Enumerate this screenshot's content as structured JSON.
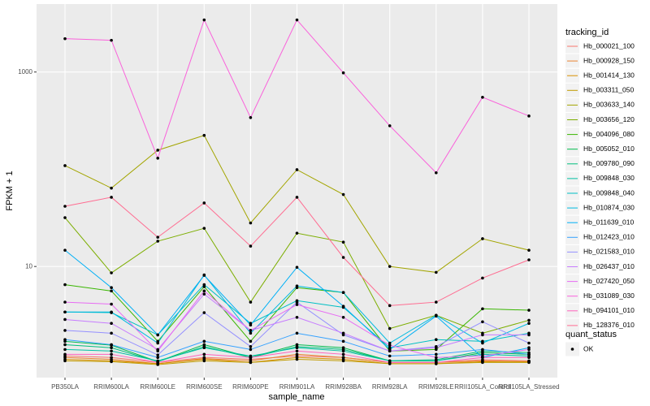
{
  "chart_data": {
    "type": "line",
    "x_label": "sample_name",
    "y_label": "FPKM + 1",
    "log_y": true,
    "grid": true,
    "legend_position": "right",
    "legend_title": "tracking_id",
    "status_legend_title": "quant_status",
    "status_values": [
      "OK"
    ],
    "point_color": "#000000",
    "ylim": [
      0.72,
      5000
    ],
    "yticks": [
      10,
      1000
    ],
    "categories": [
      "PB350LA",
      "RRIM600LA",
      "RRIM600LE",
      "RRIM600SE",
      "RRIM600PE",
      "RRIM901LA",
      "RRIM928BA",
      "RRIM928LA",
      "RRIM928LE",
      "RRII105LA_Control",
      "RRII105LA_Stressed"
    ],
    "series": [
      {
        "name": "Hb_000021_100",
        "color": "#F8766D",
        "values": [
          1.2,
          1.16,
          1.03,
          1.16,
          1.11,
          1.2,
          1.16,
          1.03,
          1.03,
          1.1,
          1.07
        ]
      },
      {
        "name": "Hb_000928_150",
        "color": "#EA8331",
        "values": [
          1.16,
          1.11,
          1.0,
          1.13,
          1.07,
          1.25,
          1.16,
          1.03,
          1.03,
          1.07,
          1.05
        ]
      },
      {
        "name": "Hb_001414_130",
        "color": "#D89000",
        "values": [
          1.11,
          1.07,
          1.0,
          1.11,
          1.03,
          1.16,
          1.11,
          1.0,
          1.0,
          1.05,
          1.05
        ]
      },
      {
        "name": "Hb_003311_050",
        "color": "#C09B00",
        "values": [
          1.07,
          1.05,
          0.98,
          1.07,
          1.03,
          1.11,
          1.07,
          1.0,
          1.0,
          1.03,
          1.03
        ]
      },
      {
        "name": "Hb_003633_140",
        "color": "#A3A500",
        "values": [
          109,
          64,
          157,
          223,
          28,
          99,
          55,
          10,
          8.7,
          19.3,
          14.7
        ]
      },
      {
        "name": "Hb_003656_120",
        "color": "#7CAE00",
        "values": [
          31.8,
          8.6,
          18.2,
          24.7,
          4.3,
          22,
          17.8,
          2.3,
          3.15,
          2.06,
          2.8
        ]
      },
      {
        "name": "Hb_004096_080",
        "color": "#39B600",
        "values": [
          6.5,
          5.6,
          1.7,
          6.2,
          1.7,
          6.06,
          5.4,
          1.35,
          1.4,
          3.67,
          3.55
        ]
      },
      {
        "name": "Hb_005052_010",
        "color": "#00BB4E",
        "values": [
          1.7,
          1.55,
          1.05,
          1.57,
          1.16,
          1.57,
          1.46,
          1.07,
          1.07,
          1.3,
          1.25
        ]
      },
      {
        "name": "Hb_009780_090",
        "color": "#00BF7D",
        "values": [
          1.57,
          1.46,
          1.05,
          1.5,
          1.16,
          1.5,
          1.4,
          1.07,
          1.1,
          1.35,
          1.3
        ]
      },
      {
        "name": "Hb_009848_030",
        "color": "#00C1A3",
        "values": [
          1.4,
          1.35,
          1.07,
          1.46,
          1.2,
          1.46,
          1.35,
          1.07,
          1.07,
          1.25,
          1.2
        ]
      },
      {
        "name": "Hb_009848_040",
        "color": "#00BFC4",
        "values": [
          3.4,
          3.35,
          1.98,
          6.5,
          2.6,
          4.45,
          3.8,
          1.46,
          1.77,
          1.7,
          2.06
        ]
      },
      {
        "name": "Hb_010874_030",
        "color": "#00BAE0",
        "values": [
          3.4,
          3.4,
          1.63,
          8.2,
          2.06,
          6.3,
          5.4,
          1.63,
          3.15,
          1.63,
          2.6
        ]
      },
      {
        "name": "Hb_011639_010",
        "color": "#00B0F6",
        "values": [
          14.7,
          6.06,
          1.98,
          8.1,
          2.5,
          9.8,
          3.9,
          1.4,
          3.09,
          1.16,
          1.46
        ]
      },
      {
        "name": "Hb_012423_010",
        "color": "#35A2FF",
        "values": [
          1.77,
          1.57,
          1.16,
          1.7,
          1.4,
          2.06,
          1.7,
          1.2,
          1.25,
          1.4,
          1.25
        ]
      },
      {
        "name": "Hb_021583_010",
        "color": "#9590FF",
        "values": [
          2.2,
          2.06,
          1.23,
          3.35,
          1.5,
          4.3,
          1.98,
          1.35,
          1.5,
          2.7,
          1.63
        ]
      },
      {
        "name": "Hb_026437_010",
        "color": "#C77CFF",
        "values": [
          2.85,
          2.6,
          1.4,
          5.2,
          2.2,
          3.0,
          2.06,
          1.35,
          1.46,
          1.98,
          1.98
        ]
      },
      {
        "name": "Hb_027420_050",
        "color": "#E76BF3",
        "values": [
          4.3,
          4.1,
          1.35,
          5.6,
          2.2,
          4.05,
          3.0,
          1.55,
          1.16,
          1.2,
          1.4
        ]
      },
      {
        "name": "Hb_031089_030",
        "color": "#FA62DB",
        "values": [
          2203,
          2120,
          130,
          3434,
          340,
          3434,
          981,
          280,
          92,
          550,
          353
        ]
      },
      {
        "name": "Hb_094101_010",
        "color": "#FF62BC",
        "values": [
          1.25,
          1.25,
          1.03,
          1.25,
          1.16,
          1.35,
          1.25,
          1.03,
          1.03,
          1.16,
          1.16
        ]
      },
      {
        "name": "Hb_128376_010",
        "color": "#FF6C91",
        "values": [
          41.6,
          51.5,
          20,
          45,
          16.2,
          51.5,
          12.4,
          3.96,
          4.3,
          7.6,
          11.7
        ]
      }
    ]
  }
}
